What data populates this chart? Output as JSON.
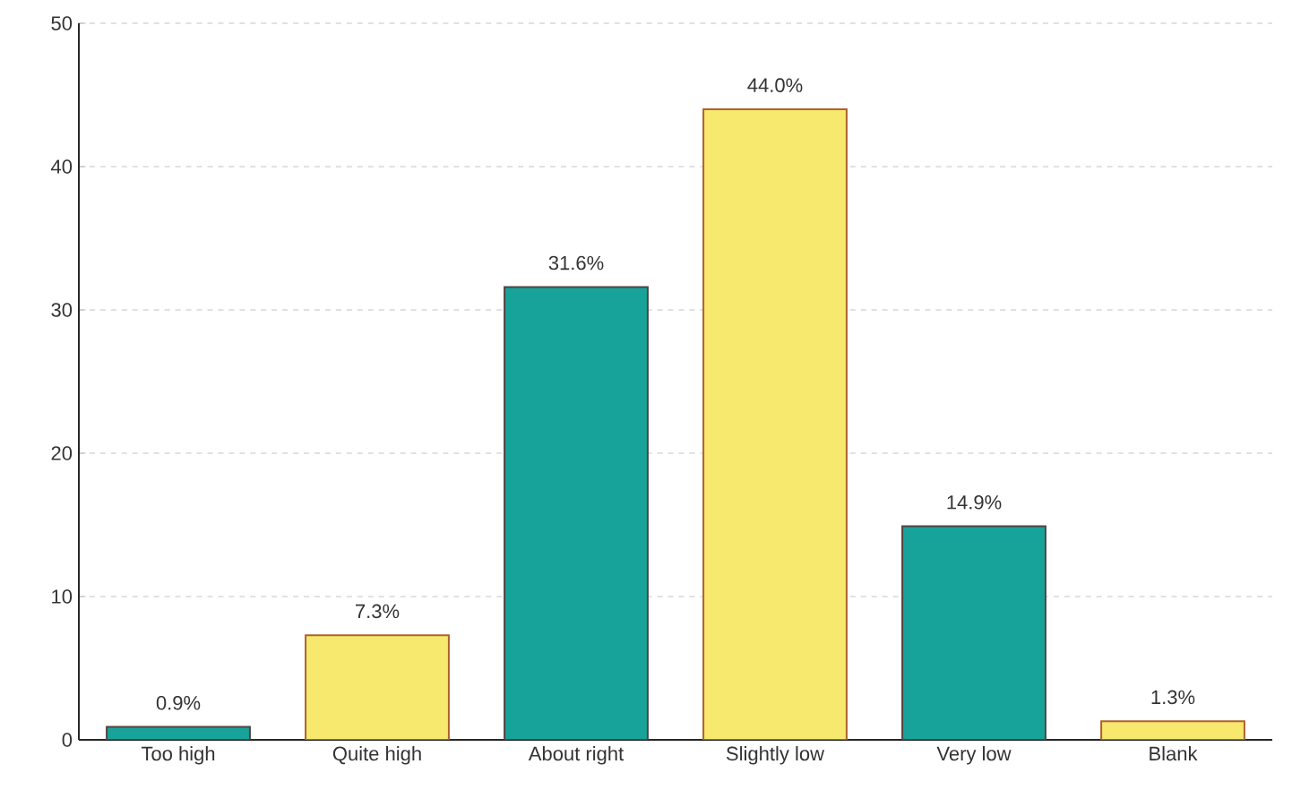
{
  "chart_data": {
    "type": "bar",
    "categories": [
      "Too high",
      "Quite high",
      "About right",
      "Slightly low",
      "Very low",
      "Blank"
    ],
    "values": [
      0.9,
      7.3,
      31.6,
      44.0,
      14.9,
      1.3
    ],
    "value_labels": [
      "0.9%",
      "7.3%",
      "31.6%",
      "44.0%",
      "14.9%",
      "1.3%"
    ],
    "colors": [
      "#17a39a",
      "#f7e86e",
      "#17a39a",
      "#f7e86e",
      "#17a39a",
      "#f7e86e"
    ],
    "ylim": [
      0,
      50
    ],
    "yticks": [
      0,
      10,
      20,
      30,
      40,
      50
    ],
    "grid": "y"
  }
}
